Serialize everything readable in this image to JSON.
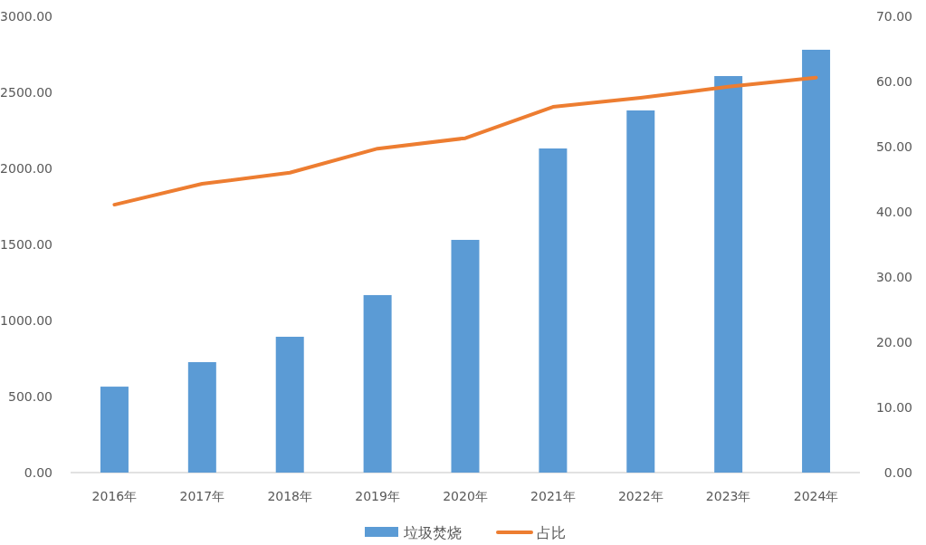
{
  "chart_data": {
    "type": "bar",
    "categories": [
      "2016年",
      "2017年",
      "2018年",
      "2019年",
      "2020年",
      "2021年",
      "2022年",
      "2023年",
      "2024年"
    ],
    "series": [
      {
        "name": "垃圾焚烧",
        "color": "#5b9bd5",
        "values": [
          565,
          726,
          893,
          1167,
          1530,
          2131,
          2381,
          2607,
          2780
        ]
      },
      {
        "name": "占比",
        "type": "line",
        "axis": "y2",
        "color": "#ed7d31",
        "values": [
          41.1,
          44.3,
          46.0,
          49.7,
          51.3,
          56.1,
          57.5,
          59.2,
          60.6
        ]
      }
    ],
    "ylim": [
      0,
      3000
    ],
    "yticks": [
      {
        "value": 0,
        "label": "0.00"
      },
      {
        "value": 500,
        "label": "500.00"
      },
      {
        "value": 1000,
        "label": "1000.00"
      },
      {
        "value": 1500,
        "label": "1500.00"
      },
      {
        "value": 2000,
        "label": "2000.00"
      },
      {
        "value": 2500,
        "label": "2500.00"
      },
      {
        "value": 3000,
        "label": "3000.00"
      }
    ],
    "y2lim": [
      0,
      70
    ],
    "y2ticks": [
      {
        "value": 0,
        "label": "0.00"
      },
      {
        "value": 10,
        "label": "10.00"
      },
      {
        "value": 20,
        "label": "20.00"
      },
      {
        "value": 30,
        "label": "30.00"
      },
      {
        "value": 40,
        "label": "40.00"
      },
      {
        "value": 50,
        "label": "50.00"
      },
      {
        "value": 60,
        "label": "60.00"
      },
      {
        "value": 70,
        "label": "70.00"
      }
    ],
    "grid": false,
    "legend": "bottom",
    "marker": "none"
  }
}
